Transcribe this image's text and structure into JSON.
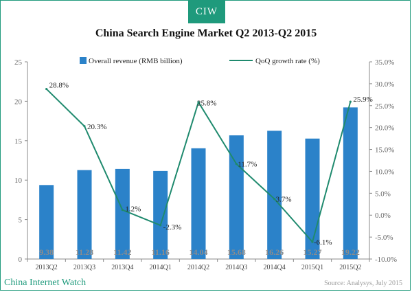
{
  "header": {
    "badge": "CIW",
    "title": "China Search Engine Market Q2 2013-Q2 2015"
  },
  "footer": {
    "brand": "China Internet Watch",
    "source": "Source: Analysys, July 2015"
  },
  "colors": {
    "bar": "#2b82c9",
    "line": "#1f8a6e",
    "accent": "#1f9a7c"
  },
  "chart_data": {
    "type": "bar+line",
    "categories": [
      "2013Q2",
      "2013Q3",
      "2013Q4",
      "2014Q1",
      "2014Q2",
      "2014Q3",
      "2014Q4",
      "2015Q1",
      "2015Q2"
    ],
    "series": [
      {
        "name": "Overall revenue (RMB billion)",
        "type": "bar",
        "axis": "left",
        "values": [
          9.38,
          11.28,
          11.42,
          11.16,
          14.04,
          15.68,
          16.26,
          15.27,
          19.22
        ],
        "labels": [
          "9.38",
          "11.28",
          "11.42",
          "11.16",
          "14.04",
          "15.68",
          "16.26",
          "15.27",
          "19.22"
        ]
      },
      {
        "name": "QoQ growth rate (%)",
        "type": "line",
        "axis": "right",
        "values": [
          28.8,
          20.3,
          1.2,
          -2.3,
          25.8,
          11.7,
          3.7,
          -6.1,
          25.9
        ],
        "labels": [
          "28.8%",
          "20.3%",
          "1.2%",
          "-2.3%",
          "25.8%",
          "11.7%",
          "3.7%",
          "-6.1%",
          "25.9%"
        ]
      }
    ],
    "y_left": {
      "min": 0,
      "max": 25,
      "ticks": [
        "0",
        "5",
        "10",
        "15",
        "20",
        "25"
      ]
    },
    "y_right": {
      "min": -10,
      "max": 35,
      "ticks": [
        "-10.0%",
        "-5.0%",
        "0.0%",
        "5.0%",
        "10.0%",
        "15.0%",
        "20.0%",
        "25.0%",
        "30.0%",
        "35.0%"
      ]
    },
    "legend_position": "top",
    "grid": false
  }
}
